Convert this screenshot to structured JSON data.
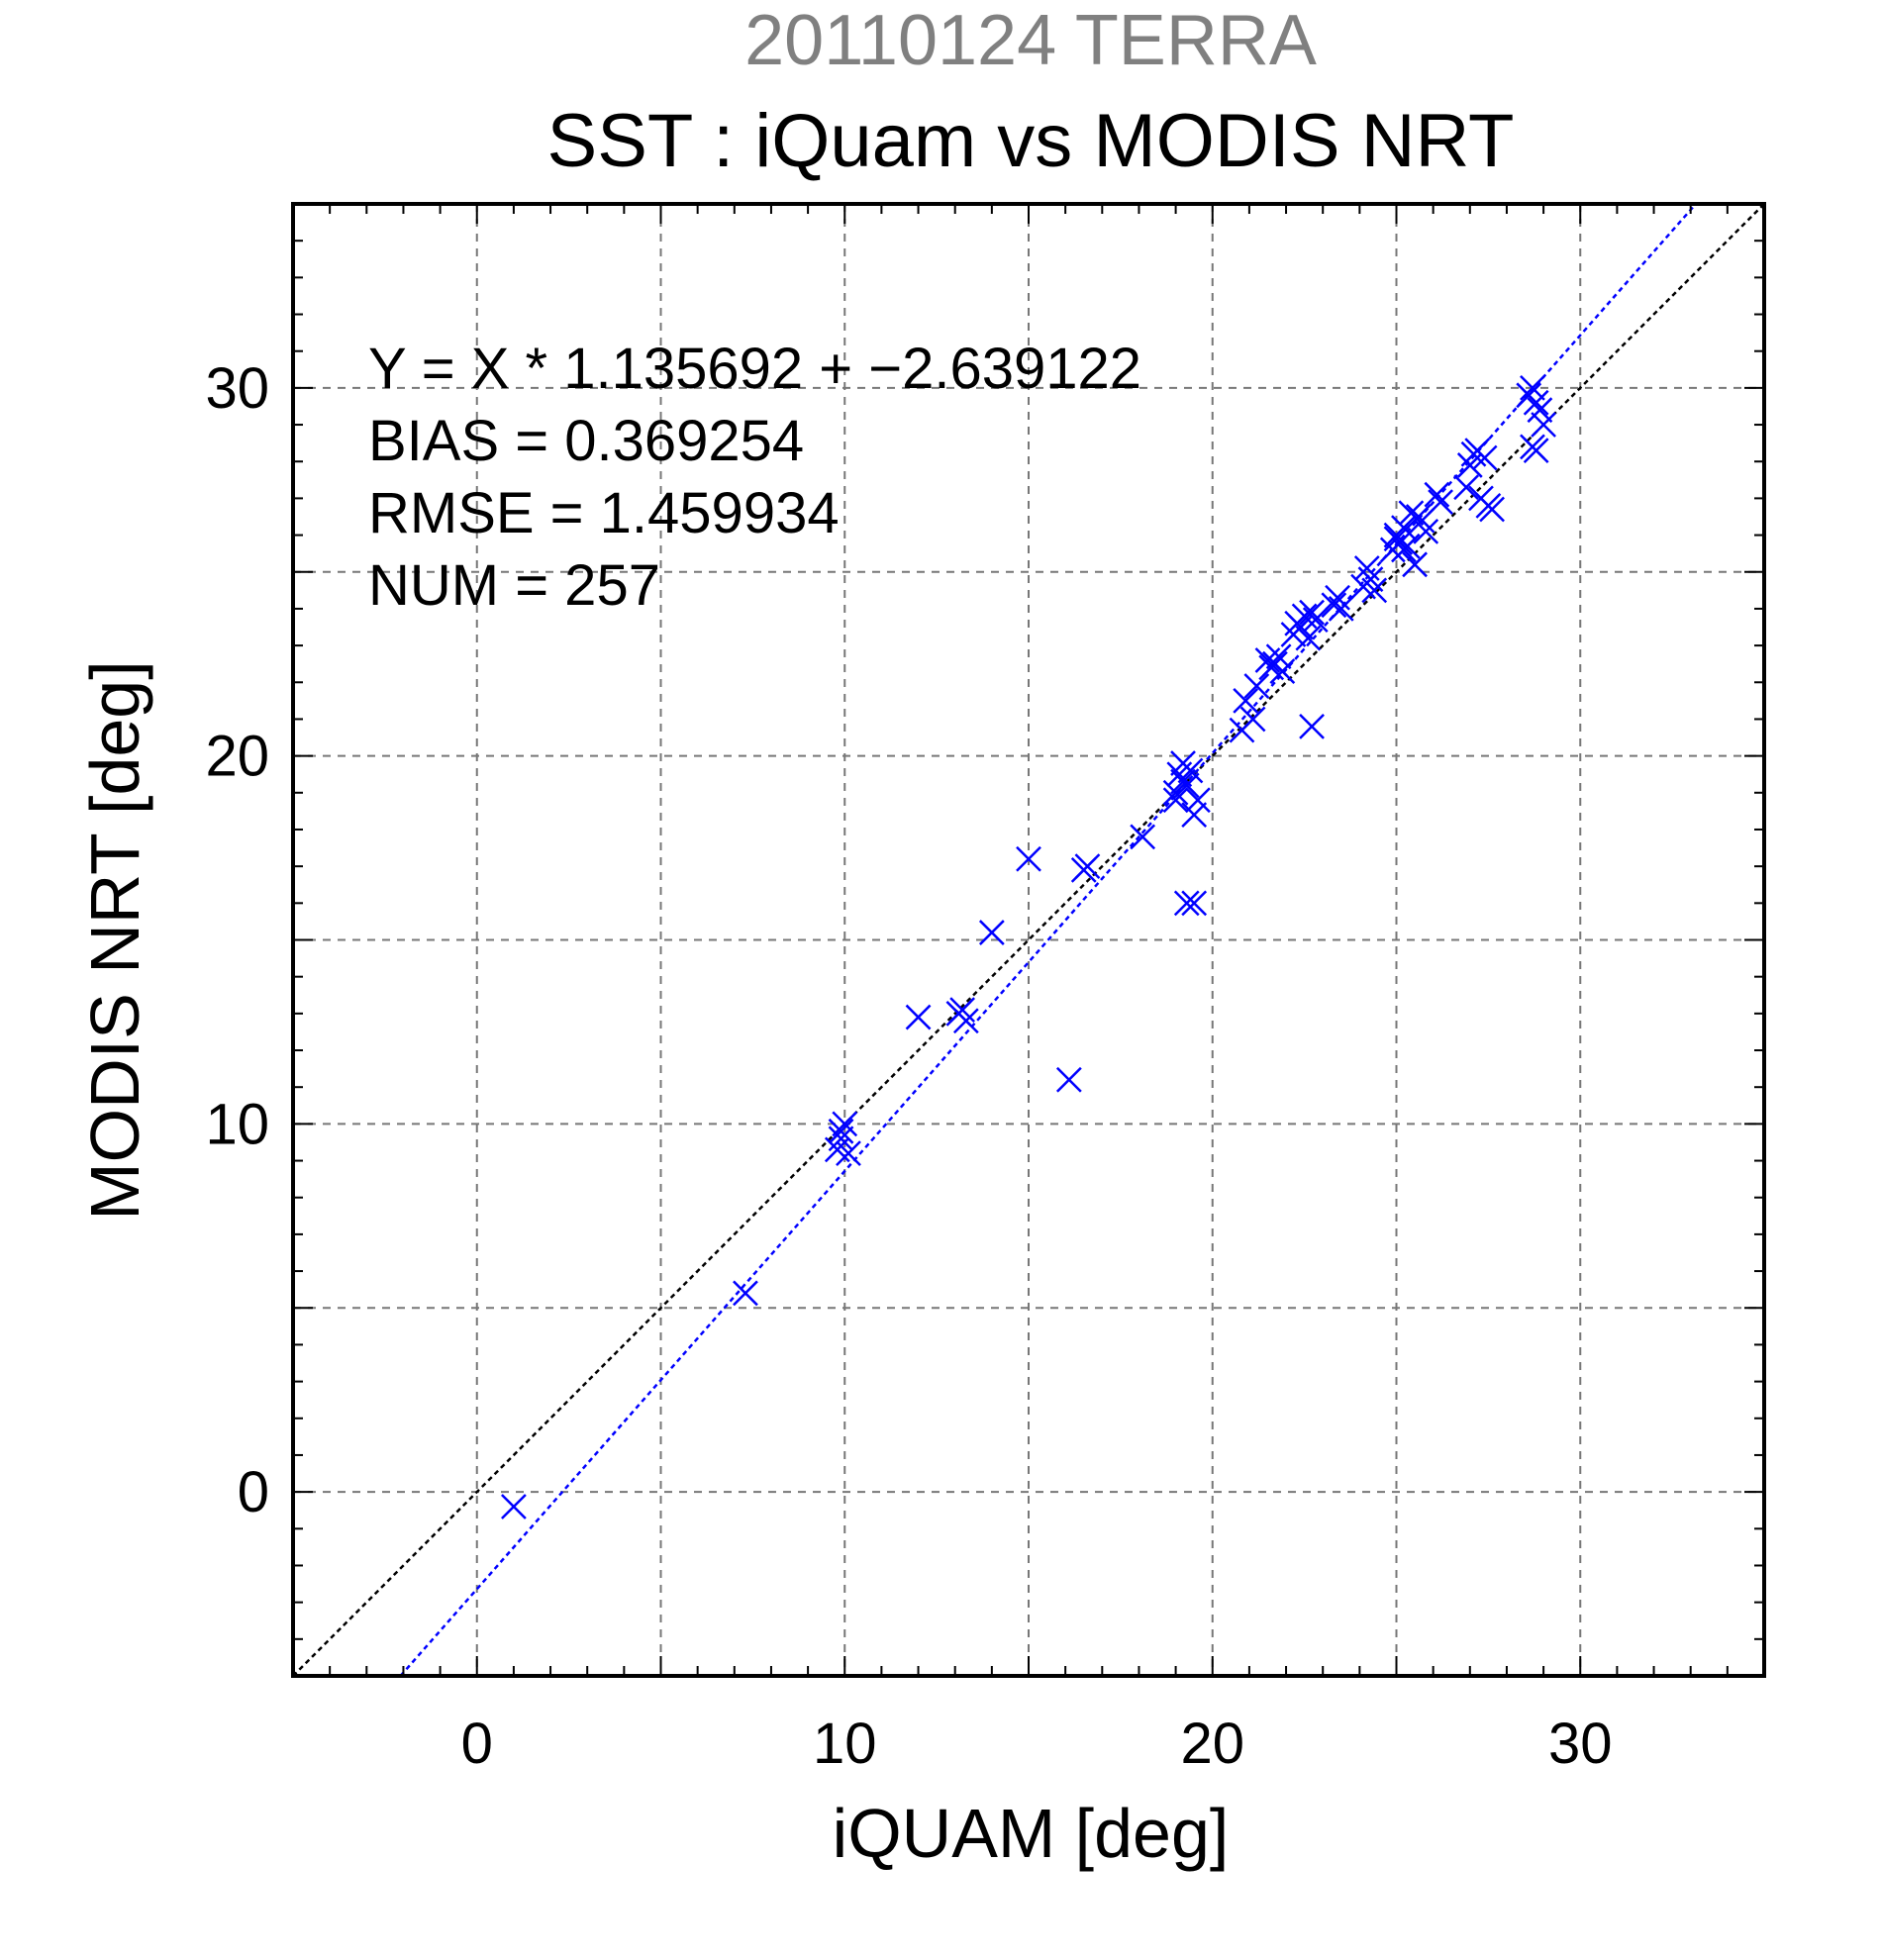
{
  "chart_data": {
    "type": "scatter",
    "title": "20110124 TERRA",
    "subtitle": "SST : iQuam vs MODIS NRT",
    "xlabel": "iQUAM [deg]",
    "ylabel": "MODIS NRT [deg]",
    "xlim": [
      -5,
      35
    ],
    "ylim": [
      -5,
      35
    ],
    "xticks": [
      0,
      10,
      20,
      30
    ],
    "yticks": [
      0,
      10,
      20,
      30
    ],
    "grid": true,
    "stats": [
      "Y = X * 1.135692 + −2.639122",
      "BIAS = 0.369254",
      "RMSE = 1.459934",
      "NUM = 257"
    ],
    "fit_line": {
      "slope": 1.135692,
      "intercept": -2.639122,
      "color": "#0000ff"
    },
    "identity_line": {
      "slope": 1,
      "intercept": 0,
      "color": "#000000"
    },
    "marker_color": "#0000ff",
    "points": [
      [
        1.0,
        -0.4
      ],
      [
        7.3,
        5.4
      ],
      [
        9.8,
        9.3
      ],
      [
        9.9,
        9.6
      ],
      [
        10.0,
        10.0
      ],
      [
        10.1,
        9.2
      ],
      [
        9.9,
        9.8
      ],
      [
        12.0,
        12.9
      ],
      [
        13.1,
        13.0
      ],
      [
        13.2,
        13.1
      ],
      [
        13.3,
        12.8
      ],
      [
        14.0,
        15.2
      ],
      [
        15.0,
        17.2
      ],
      [
        16.1,
        11.2
      ],
      [
        16.5,
        16.9
      ],
      [
        16.6,
        17.0
      ],
      [
        18.1,
        17.8
      ],
      [
        19.0,
        19.0
      ],
      [
        19.1,
        19.5
      ],
      [
        19.2,
        19.8
      ],
      [
        19.3,
        19.2
      ],
      [
        19.0,
        18.8
      ],
      [
        19.4,
        19.6
      ],
      [
        19.5,
        18.4
      ],
      [
        19.6,
        18.8
      ],
      [
        19.2,
        19.3
      ],
      [
        19.3,
        16.0
      ],
      [
        19.5,
        16.0
      ],
      [
        20.8,
        20.7
      ],
      [
        20.9,
        21.5
      ],
      [
        21.1,
        21.0
      ],
      [
        21.2,
        21.9
      ],
      [
        21.5,
        22.6
      ],
      [
        21.6,
        22.4
      ],
      [
        21.8,
        22.7
      ],
      [
        21.9,
        22.3
      ],
      [
        21.7,
        22.5
      ],
      [
        22.2,
        23.3
      ],
      [
        22.3,
        23.6
      ],
      [
        22.5,
        23.8
      ],
      [
        22.6,
        23.2
      ],
      [
        22.8,
        23.7
      ],
      [
        22.4,
        23.5
      ],
      [
        22.7,
        23.9
      ],
      [
        22.7,
        20.8
      ],
      [
        23.3,
        24.1
      ],
      [
        23.4,
        24.3
      ],
      [
        23.5,
        24.0
      ],
      [
        24.1,
        24.6
      ],
      [
        24.2,
        25.1
      ],
      [
        24.3,
        24.8
      ],
      [
        24.4,
        24.5
      ],
      [
        24.9,
        25.6
      ],
      [
        25.0,
        26.0
      ],
      [
        25.1,
        25.8
      ],
      [
        25.2,
        26.2
      ],
      [
        25.3,
        25.7
      ],
      [
        25.0,
        25.9
      ],
      [
        25.2,
        25.6
      ],
      [
        25.5,
        25.2
      ],
      [
        25.6,
        26.5
      ],
      [
        25.7,
        26.4
      ],
      [
        25.8,
        26.1
      ],
      [
        25.4,
        26.6
      ],
      [
        26.1,
        27.1
      ],
      [
        26.2,
        26.9
      ],
      [
        26.9,
        27.3
      ],
      [
        27.0,
        27.9
      ],
      [
        27.1,
        28.2
      ],
      [
        27.2,
        28.3
      ],
      [
        27.3,
        27.0
      ],
      [
        27.4,
        28.1
      ],
      [
        27.5,
        26.8
      ],
      [
        27.6,
        26.7
      ],
      [
        28.6,
        29.8
      ],
      [
        28.7,
        30.0
      ],
      [
        28.8,
        29.6
      ],
      [
        28.9,
        29.4
      ],
      [
        28.7,
        28.4
      ],
      [
        28.8,
        28.3
      ],
      [
        29.0,
        29.0
      ]
    ]
  }
}
